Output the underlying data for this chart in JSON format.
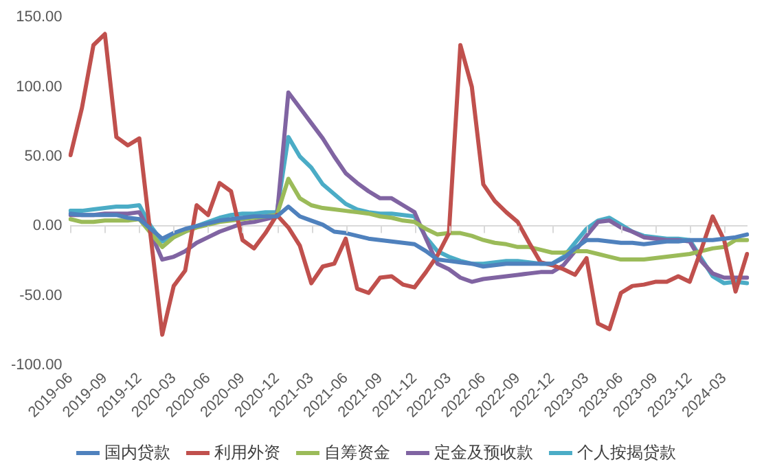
{
  "chart_data": {
    "type": "line",
    "categories": [
      "2019-06",
      null,
      null,
      "2019-09",
      null,
      null,
      "2019-12",
      null,
      null,
      "2020-03",
      null,
      null,
      "2020-06",
      null,
      null,
      "2020-09",
      null,
      null,
      "2020-12",
      null,
      null,
      "2021-03",
      null,
      null,
      "2021-06",
      null,
      null,
      "2021-09",
      null,
      null,
      "2021-12",
      null,
      null,
      "2022-03",
      null,
      null,
      "2022-06",
      null,
      null,
      "2022-09",
      null,
      null,
      "2022-12",
      null,
      null,
      "2023-03",
      null,
      null,
      "2023-06",
      null,
      null,
      "2023-09",
      null,
      null,
      "2023-12",
      null,
      null,
      "2024-03",
      null,
      null
    ],
    "series": [
      {
        "name": "国内贷款",
        "color": "#4f81bd",
        "values": [
          9,
          8,
          8,
          8,
          8,
          6,
          5,
          -2,
          -9,
          -5,
          -2,
          0,
          2,
          4,
          5,
          6,
          7,
          7,
          7,
          14,
          7,
          4,
          1,
          -4,
          -5,
          -7,
          -9,
          -10,
          -11,
          -12,
          -13,
          -18,
          -24,
          -25,
          -26,
          -27,
          -29,
          -28,
          -27,
          -27,
          -27,
          -27,
          -27,
          -23,
          -16,
          -10,
          -10,
          -11,
          -12,
          -12,
          -13,
          -12,
          -11,
          -11,
          -10,
          -10,
          -10,
          -9,
          -8,
          -6
        ]
      },
      {
        "name": "利用外资",
        "color": "#c0504d",
        "values": [
          51,
          85,
          130,
          138,
          64,
          58,
          63,
          -8,
          -78,
          -43,
          -32,
          15,
          8,
          31,
          25,
          -10,
          -16,
          -5,
          8,
          -1,
          -14,
          -41,
          -29,
          -27,
          -9,
          -45,
          -48,
          -37,
          -36,
          -42,
          -44,
          -33,
          -21,
          -5,
          130,
          100,
          30,
          18,
          10,
          3,
          -12,
          -26,
          -28,
          -31,
          -35,
          -23,
          -70,
          -74,
          -48,
          -43,
          -42,
          -40,
          -40,
          -36,
          -40,
          -17,
          7,
          -10,
          -47,
          -20
        ]
      },
      {
        "name": "自筹资金",
        "color": "#9bbb59",
        "values": [
          5,
          3,
          3,
          4,
          4,
          4,
          5,
          -5,
          -15,
          -8,
          -4,
          -1,
          1,
          3,
          4,
          5,
          6,
          7,
          8,
          34,
          20,
          15,
          13,
          12,
          11,
          10,
          9,
          7,
          6,
          4,
          3,
          -2,
          -6,
          -5,
          -5,
          -7,
          -10,
          -12,
          -13,
          -15,
          -15,
          -17,
          -19,
          -19,
          -18,
          -18,
          -20,
          -22,
          -24,
          -24,
          -24,
          -23,
          -22,
          -21,
          -20,
          -18,
          -16,
          -15,
          -10,
          -10
        ]
      },
      {
        "name": "定金及预收款",
        "color": "#8064a2",
        "values": [
          8,
          8,
          8,
          9,
          9,
          9,
          10,
          -5,
          -24,
          -22,
          -18,
          -12,
          -8,
          -4,
          -1,
          2,
          3,
          5,
          7,
          96,
          85,
          74,
          63,
          50,
          38,
          31,
          25,
          20,
          20,
          15,
          10,
          -9,
          -27,
          -31,
          -37,
          -40,
          -38,
          -37,
          -36,
          -35,
          -34,
          -33,
          -33,
          -28,
          -18,
          -7,
          3,
          4,
          -1,
          -4,
          -8,
          -9,
          -10,
          -10,
          -11,
          -25,
          -34,
          -37,
          -37,
          -37
        ]
      },
      {
        "name": "个人按揭贷款",
        "color": "#4bacc6",
        "values": [
          11,
          11,
          12,
          13,
          14,
          14,
          15,
          0,
          -11,
          -8,
          -4,
          0,
          3,
          6,
          8,
          9,
          9,
          10,
          10,
          64,
          50,
          42,
          30,
          23,
          16,
          12,
          10,
          9,
          9,
          8,
          7,
          -8,
          -18,
          -22,
          -25,
          -27,
          -27,
          -26,
          -25,
          -25,
          -26,
          -27,
          -27,
          -22,
          -12,
          -2,
          4,
          6,
          1,
          -4,
          -7,
          -8,
          -9,
          -9,
          -10,
          -23,
          -36,
          -41,
          -40,
          -41
        ]
      }
    ],
    "ylim": [
      -100,
      150
    ],
    "yticks": [
      {
        "value": -100,
        "label": "-100.00"
      },
      {
        "value": -50,
        "label": "-50.00"
      },
      {
        "value": 0,
        "label": "0.00"
      },
      {
        "value": 50,
        "label": "50.00"
      },
      {
        "value": 100,
        "label": "100.00"
      },
      {
        "value": 150,
        "label": "150.00"
      }
    ],
    "legend": "bottom",
    "marker": "none",
    "line_style": "solid"
  }
}
